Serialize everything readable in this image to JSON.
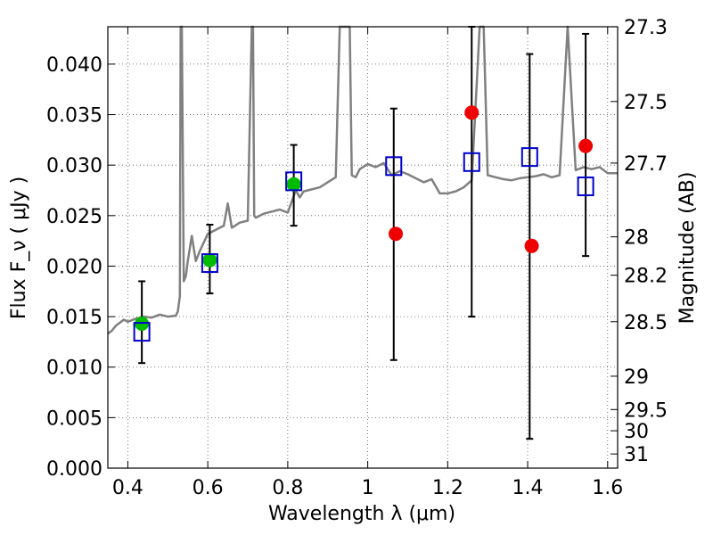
{
  "chart_data": {
    "type": "scatter",
    "xlabel": "Wavelength  λ (μm)",
    "ylabel": "Flux  F_ν  ( μJy )",
    "ylabel_right": "Magnitude (AB)",
    "xlim": [
      0.35,
      1.625
    ],
    "ylim": [
      0,
      0.0437
    ],
    "grid": true,
    "x_ticks": [
      0.4,
      0.6,
      0.8,
      1,
      1.2,
      1.4,
      1.6
    ],
    "x_tick_labels": [
      "0.4",
      "0.6",
      "0.8",
      "1",
      "1.2",
      "1.4",
      "1.6"
    ],
    "y_ticks": [
      0,
      0.005,
      0.01,
      0.015,
      0.02,
      0.025,
      0.03,
      0.035,
      0.04
    ],
    "y_tick_labels": [
      "0.000",
      "0.005",
      "0.010",
      "0.015",
      "0.020",
      "0.025",
      "0.030",
      "0.035",
      "0.040"
    ],
    "magnitude_ticks": [
      {
        "label": "27.3",
        "flux": 0.0437
      },
      {
        "label": "27.5",
        "flux": 0.0363
      },
      {
        "label": "27.7",
        "flux": 0.0302
      },
      {
        "label": "28",
        "flux": 0.0229
      },
      {
        "label": "28.2",
        "flux": 0.0191
      },
      {
        "label": "28.5",
        "flux": 0.0145
      },
      {
        "label": "29",
        "flux": 0.0091
      },
      {
        "label": "29.5",
        "flux": 0.0058
      },
      {
        "label": "30",
        "flux": 0.0037
      },
      {
        "label": "31",
        "flux": 0.0014
      }
    ],
    "series": [
      {
        "style": "model-spectrum",
        "color": "#808080",
        "x": [
          0.35,
          0.36,
          0.37,
          0.38,
          0.39,
          0.4,
          0.42,
          0.44,
          0.46,
          0.48,
          0.5,
          0.52,
          0.525,
          0.53,
          0.532,
          0.535,
          0.54,
          0.545,
          0.55,
          0.56,
          0.57,
          0.58,
          0.6,
          0.62,
          0.64,
          0.65,
          0.66,
          0.68,
          0.7,
          0.71,
          0.713,
          0.716,
          0.72,
          0.74,
          0.76,
          0.78,
          0.8,
          0.82,
          0.83,
          0.84,
          0.86,
          0.88,
          0.9,
          0.92,
          0.93,
          0.94,
          0.95,
          0.955,
          0.96,
          0.97,
          0.98,
          1.0,
          1.02,
          1.04,
          1.06,
          1.08,
          1.1,
          1.12,
          1.14,
          1.16,
          1.18,
          1.2,
          1.22,
          1.24,
          1.26,
          1.28,
          1.29,
          1.3,
          1.32,
          1.34,
          1.36,
          1.38,
          1.4,
          1.42,
          1.44,
          1.46,
          1.48,
          1.5,
          1.52,
          1.54,
          1.56,
          1.58,
          1.6,
          1.625
        ],
        "y": [
          0.0133,
          0.0136,
          0.0141,
          0.0144,
          0.0147,
          0.0145,
          0.0148,
          0.015,
          0.0149,
          0.0152,
          0.015,
          0.0151,
          0.0155,
          0.017,
          0.0437,
          0.0437,
          0.0185,
          0.019,
          0.0205,
          0.023,
          0.0205,
          0.0215,
          0.0232,
          0.0236,
          0.024,
          0.0262,
          0.0238,
          0.0243,
          0.0245,
          0.0437,
          0.0437,
          0.025,
          0.0248,
          0.0252,
          0.0254,
          0.0256,
          0.0253,
          0.0275,
          0.0268,
          0.0274,
          0.0276,
          0.0278,
          0.0283,
          0.0288,
          0.0437,
          0.0437,
          0.0437,
          0.0437,
          0.029,
          0.0288,
          0.0296,
          0.0301,
          0.0298,
          0.0302,
          0.029,
          0.0294,
          0.0291,
          0.0287,
          0.0283,
          0.0286,
          0.0272,
          0.0272,
          0.0274,
          0.0278,
          0.0285,
          0.0437,
          0.0437,
          0.029,
          0.0288,
          0.0286,
          0.0285,
          0.0287,
          0.0288,
          0.0289,
          0.0291,
          0.0288,
          0.029,
          0.0437,
          0.0295,
          0.0298,
          0.0296,
          0.0298,
          0.0292,
          0.0292
        ]
      },
      {
        "style": "open-blue-squares",
        "color": "#0000cc",
        "points": [
          {
            "x": 0.435,
            "y": 0.0135,
            "yerr_low": 0.0104,
            "yerr_high": 0.0185
          },
          {
            "x": 0.605,
            "y": 0.0203,
            "yerr_low": 0.0173,
            "yerr_high": 0.0241
          },
          {
            "x": 0.815,
            "y": 0.0284,
            "yerr_low": 0.024,
            "yerr_high": 0.032
          },
          {
            "x": 1.065,
            "y": 0.0299,
            "yerr_low": 0.0107,
            "yerr_high": 0.0356
          },
          {
            "x": 1.26,
            "y": 0.0303,
            "yerr_low": 0.015,
            "yerr_high": 0.0437
          },
          {
            "x": 1.405,
            "y": 0.0308,
            "yerr_low": 0.0029,
            "yerr_high": 0.041
          },
          {
            "x": 1.545,
            "y": 0.0279,
            "yerr_low": 0.021,
            "yerr_high": 0.043
          }
        ]
      },
      {
        "style": "green-dots",
        "color": "#00bb00",
        "points": [
          {
            "x": 0.435,
            "y": 0.0143
          },
          {
            "x": 0.605,
            "y": 0.0206
          },
          {
            "x": 0.815,
            "y": 0.0281
          }
        ]
      },
      {
        "style": "red-dots",
        "color": "#ee0000",
        "points": [
          {
            "x": 1.07,
            "y": 0.0232
          },
          {
            "x": 1.26,
            "y": 0.0352
          },
          {
            "x": 1.41,
            "y": 0.022
          },
          {
            "x": 1.545,
            "y": 0.0319
          }
        ]
      }
    ]
  }
}
